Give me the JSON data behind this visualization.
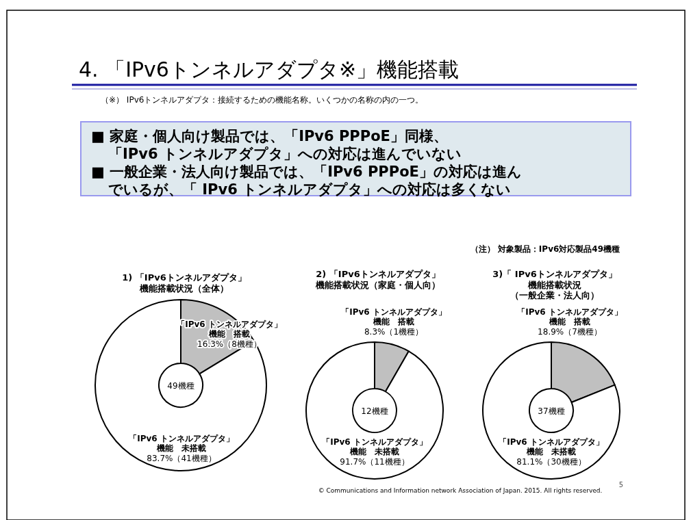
{
  "chart_data": [
    {
      "type": "other",
      "title": "4. 「IPv6トンネルアダプタ※」機能搭載",
      "subtitle": "（※） IPv6トンネルアダプタ：接続するための機能名称。いくつかの名称の内の一つ。",
      "annotations": [
        "■ 家庭・個人向け製品では、「IPv6 PPPoE」同様、",
        "「IPv6 トンネルアダプタ」への対応は進んでいない",
        "■ 一般企業・法人向け製品では、「IPv6 PPPoE」の対応は進ん",
        "でいるが、「 IPv6 トンネルアダプタ」への対応は多くない",
        "（注） 対象製品：IPv6対応製品49機種",
        "© Communications and Information network Association of Japan. 2015. All rights reserved.",
        "5"
      ]
    },
    {
      "type": "donut",
      "title": "1) 「IPv6トンネルアダプタ」機能搭載状況（全体）",
      "categories": [
        "「IPv6 トンネルアダプタ」機能　搭載",
        "「IPv6 トンネルアダプタ」機能　未搭載"
      ],
      "values": [
        16.3,
        83.7
      ],
      "value_labels": [
        "16.3%（8機種）",
        "83.7%（41機種）"
      ],
      "colors": [
        "#c0c0c0",
        "#ffffff"
      ],
      "annotations": [
        "49機種"
      ]
    },
    {
      "type": "donut",
      "title": "2) 「IPv6トンネルアダプタ」機能搭載状況（家庭・個人向）",
      "categories": [
        "「IPv6 トンネルアダプタ」機能　搭載",
        "「IPv6 トンネルアダプタ」機能　未搭載"
      ],
      "values": [
        8.3,
        91.7
      ],
      "value_labels": [
        "8.3%（1機種）",
        "91.7%（11機種）"
      ],
      "colors": [
        "#c0c0c0",
        "#ffffff"
      ],
      "annotations": [
        "12機種"
      ]
    },
    {
      "type": "donut",
      "title": "3)「 IPv6トンネルアダプタ」機能搭載状況（一般企業・法人向）",
      "categories": [
        "「IPv6 トンネルアダプタ」機能　搭載",
        "「IPv6 トンネルアダプタ」機能　未搭載"
      ],
      "values": [
        18.9,
        81.1
      ],
      "value_labels": [
        "18.9%（7機種）",
        "81.1%（30機種）"
      ],
      "colors": [
        "#c0c0c0",
        "#ffffff"
      ],
      "annotations": [
        "37機種"
      ]
    }
  ]
}
